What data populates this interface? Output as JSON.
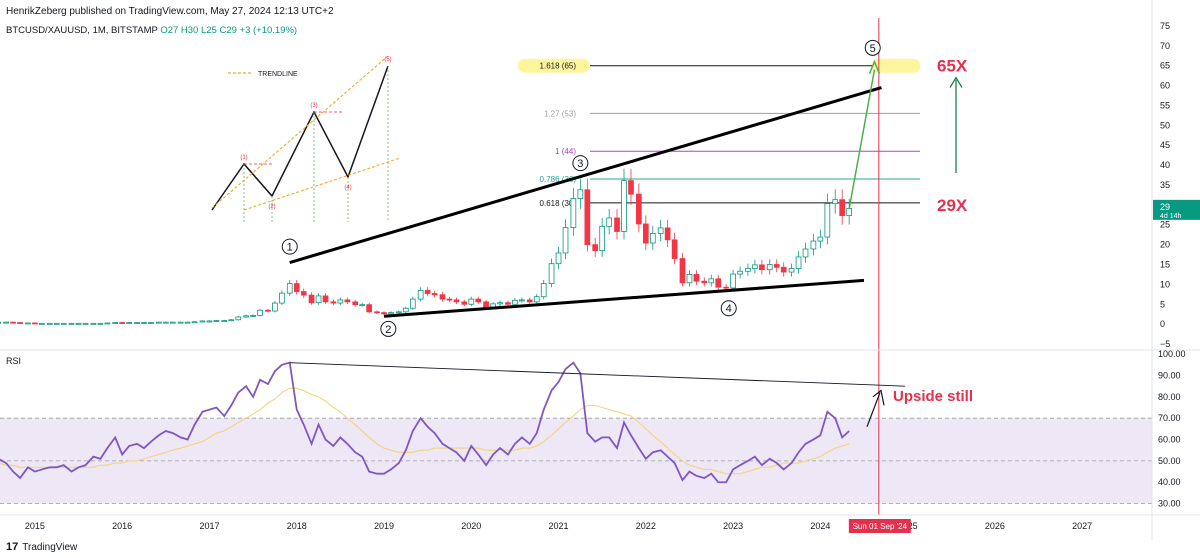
{
  "header": {
    "published": "HenrikZeberg published on TradingView.com, May 27, 2024 12:13 UTC+2"
  },
  "symbol_line": {
    "symbol": "BTCUSD/XAUUSD, 1M, BITSTAMP",
    "ohlc": "O27 H30 L25 C29 +3 (+10.19%)"
  },
  "rsi_label": "RSI",
  "footer": {
    "brand": "TradingView",
    "logo_glyph": "17"
  },
  "colors": {
    "up": "#089981",
    "down": "#f23645",
    "rsi_line": "#7e57c2",
    "rsi_ma": "#f7d37b",
    "rsi_band": "#ede7f6",
    "accent_red": "#e5304d",
    "wave5_arrow": "#4caf50",
    "target_arrow": "#1b7f4e",
    "fib_highlight": "#fff59d",
    "vline": "#e5304d"
  },
  "price_axis": {
    "ticks": [
      "75",
      "70",
      "65",
      "60",
      "55",
      "50",
      "45",
      "40",
      "35",
      "30",
      "25",
      "20",
      "15",
      "10",
      "5",
      "0",
      "−5"
    ],
    "last_price": "29",
    "last_countdown": "4d 14h"
  },
  "rsi_axis": {
    "ticks": [
      "100.00",
      "90.00",
      "80.00",
      "70.00",
      "60.00",
      "50.00",
      "40.00",
      "30.00"
    ]
  },
  "time_axis": {
    "labels": [
      "2015",
      "2016",
      "2017",
      "2018",
      "2019",
      "2020",
      "2021",
      "2022",
      "2023",
      "2024",
      "2025",
      "2026",
      "2027"
    ],
    "cursor_label": "Sun 01 Sep '24"
  },
  "fib_levels": [
    {
      "label": "1.618 (65)",
      "value": 65,
      "color": "#131722",
      "highlight": true
    },
    {
      "label": "1.27 (53)",
      "value": 53,
      "color": "#9e9e9e"
    },
    {
      "label": "1 (44)",
      "value": 43.5,
      "color": "#ab47bc"
    },
    {
      "label": "0.786 (36)",
      "value": 36.5,
      "color": "#26a69a"
    },
    {
      "label": "0.618 (30)",
      "value": 30.5,
      "color": "#131722"
    }
  ],
  "wave_labels": [
    "1",
    "2",
    "3",
    "4",
    "5"
  ],
  "annotations": {
    "target_65x": "65X",
    "current_29x": "29X",
    "upside_still": "Upside still"
  },
  "legend_inset": {
    "title": "TRENDLINE",
    "labels": [
      "(1)",
      "(2)",
      "(3)",
      "(4)",
      "(5)"
    ]
  },
  "chart_data": [
    {
      "type": "candlestick",
      "title": "BTCUSD/XAUUSD, 1M, BITSTAMP",
      "x_axis": "year",
      "xlim": [
        2014.6,
        2027.8
      ],
      "ylim": [
        -6,
        77
      ],
      "grid": false,
      "x": [
        2014.5,
        2014.58,
        2014.67,
        2014.75,
        2014.83,
        2014.92,
        2015.0,
        2015.08,
        2015.17,
        2015.25,
        2015.33,
        2015.42,
        2015.5,
        2015.58,
        2015.67,
        2015.75,
        2015.83,
        2015.92,
        2016.0,
        2016.08,
        2016.17,
        2016.25,
        2016.33,
        2016.42,
        2016.5,
        2016.58,
        2016.67,
        2016.75,
        2016.83,
        2016.92,
        2017.0,
        2017.08,
        2017.17,
        2017.25,
        2017.33,
        2017.42,
        2017.5,
        2017.58,
        2017.67,
        2017.75,
        2017.83,
        2017.92,
        2018.0,
        2018.08,
        2018.17,
        2018.25,
        2018.33,
        2018.42,
        2018.5,
        2018.58,
        2018.67,
        2018.75,
        2018.83,
        2018.92,
        2019.0,
        2019.08,
        2019.17,
        2019.25,
        2019.33,
        2019.42,
        2019.5,
        2019.58,
        2019.67,
        2019.75,
        2019.83,
        2019.92,
        2020.0,
        2020.08,
        2020.17,
        2020.25,
        2020.33,
        2020.42,
        2020.5,
        2020.58,
        2020.67,
        2020.75,
        2020.83,
        2020.92,
        2021.0,
        2021.08,
        2021.17,
        2021.25,
        2021.33,
        2021.42,
        2021.5,
        2021.58,
        2021.67,
        2021.75,
        2021.83,
        2021.92,
        2022.0,
        2022.08,
        2022.17,
        2022.25,
        2022.33,
        2022.42,
        2022.5,
        2022.58,
        2022.67,
        2022.75,
        2022.83,
        2022.92,
        2023.0,
        2023.08,
        2023.17,
        2023.25,
        2023.33,
        2023.42,
        2023.5,
        2023.58,
        2023.67,
        2023.75,
        2023.83,
        2023.92,
        2024.0,
        2024.08,
        2024.17,
        2024.25,
        2024.33
      ],
      "close": [
        0.5,
        0.5,
        0.5,
        0.4,
        0.3,
        0.3,
        0.2,
        0.2,
        0.2,
        0.2,
        0.2,
        0.2,
        0.2,
        0.2,
        0.2,
        0.2,
        0.3,
        0.4,
        0.3,
        0.4,
        0.4,
        0.4,
        0.4,
        0.5,
        0.5,
        0.5,
        0.5,
        0.5,
        0.6,
        0.8,
        0.8,
        0.9,
        0.9,
        1.1,
        1.8,
        2.1,
        2.2,
        3.5,
        3.3,
        5.3,
        7.8,
        10.2,
        8.2,
        7.3,
        5.4,
        7.1,
        5.6,
        5.3,
        6.1,
        5.6,
        4.9,
        4.9,
        3.1,
        2.9,
        2.6,
        2.9,
        3.1,
        4.0,
        6.3,
        8.5,
        7.7,
        7.4,
        6.3,
        6.1,
        5.6,
        5.0,
        6.3,
        5.6,
        4.3,
        5.1,
        5.4,
        5.0,
        6.0,
        6.1,
        5.6,
        6.9,
        10.2,
        15.2,
        17.9,
        24.3,
        31.6,
        33.8,
        20.0,
        18.5,
        24.6,
        26.7,
        23.3,
        36.1,
        32.7,
        25.2,
        20.4,
        22.8,
        24.2,
        21.2,
        16.5,
        10.4,
        12.5,
        10.8,
        10.4,
        11.4,
        9.3,
        9.1,
        12.6,
        13.3,
        14.0,
        14.9,
        13.7,
        15.0,
        14.3,
        13.1,
        14.0,
        16.9,
        18.9,
        20.9,
        21.9,
        30.3,
        31.3,
        27.3,
        29.1
      ],
      "rsi": [
        53,
        51,
        49,
        45,
        42,
        47,
        45,
        46,
        47,
        47,
        48,
        45,
        47,
        48,
        52,
        51,
        56,
        61,
        53,
        57,
        58,
        56,
        59,
        62,
        64,
        63,
        61,
        60,
        67,
        73,
        74,
        75,
        71,
        76,
        82,
        85,
        80,
        88,
        86,
        92,
        95,
        96,
        74,
        67,
        58,
        67,
        60,
        57,
        61,
        58,
        54,
        52,
        45,
        44,
        44,
        46,
        49,
        55,
        64,
        70,
        66,
        63,
        58,
        56,
        54,
        50,
        57,
        53,
        48,
        53,
        56,
        53,
        58,
        61,
        58,
        63,
        74,
        83,
        87,
        93,
        96,
        91,
        63,
        59,
        61,
        61,
        56,
        68,
        62,
        56,
        51,
        54,
        55,
        52,
        49,
        41,
        45,
        43,
        42,
        44,
        40,
        40,
        46,
        48,
        50,
        52,
        48,
        51,
        49,
        46,
        49,
        54,
        58,
        60,
        62,
        73,
        70,
        61,
        64
      ],
      "rsi_ma": [
        49,
        49,
        48,
        48,
        47,
        47,
        47,
        47,
        47,
        47,
        47,
        47,
        47,
        47,
        47,
        48,
        48,
        49,
        49,
        50,
        50,
        51,
        52,
        53,
        54,
        55,
        56,
        57,
        58,
        59,
        61,
        63,
        64,
        66,
        68,
        70,
        72,
        74,
        77,
        79,
        82,
        84,
        84,
        83,
        81,
        80,
        78,
        75,
        73,
        70,
        67,
        64,
        61,
        58,
        56,
        55,
        54,
        54,
        54,
        55,
        55,
        56,
        56,
        56,
        56,
        56,
        56,
        56,
        55,
        55,
        55,
        55,
        55,
        56,
        56,
        57,
        59,
        62,
        65,
        68,
        71,
        74,
        76,
        76,
        75,
        74,
        73,
        72,
        71,
        68,
        65,
        62,
        59,
        56,
        53,
        50,
        48,
        47,
        46,
        46,
        45,
        44,
        44,
        44,
        45,
        46,
        47,
        47,
        48,
        49,
        49,
        49,
        50,
        51,
        52,
        54,
        56,
        57,
        58
      ]
    },
    {
      "type": "line",
      "title": "RSI",
      "xlim": [
        2014.6,
        2027.8
      ],
      "ylim": [
        27,
        101
      ],
      "grid": false,
      "y_bands": [
        70,
        50,
        30
      ]
    }
  ]
}
